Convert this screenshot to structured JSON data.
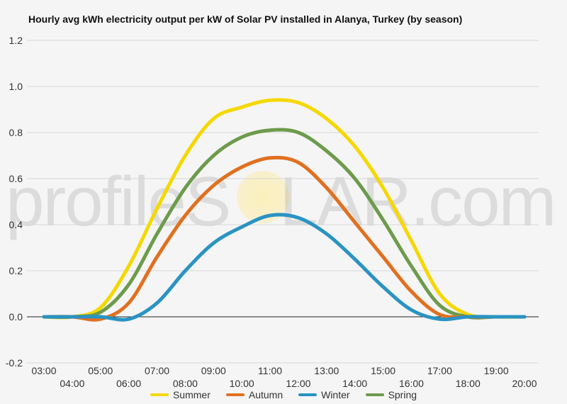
{
  "chart_title": "Hourly avg kWh electricity output per kW of Solar PV installed in Alanya, Turkey (by season)",
  "watermark": {
    "text_before": "profileS",
    "text_after": "LAR.com"
  },
  "chart_data": {
    "type": "line",
    "title": "Hourly avg kWh electricity output per kW of Solar PV installed in Alanya, Turkey (by season)",
    "xlabel": "",
    "ylabel": "",
    "ylim": [
      -0.2,
      1.2
    ],
    "yticks": [
      -0.2,
      0.0,
      0.2,
      0.4,
      0.6,
      0.8,
      1.0,
      1.2
    ],
    "yticklabels": [
      "-0.2",
      "0.0",
      "0.2",
      "0.4",
      "0.6",
      "0.8",
      "1.0",
      "1.2"
    ],
    "categories": [
      "03:00",
      "04:00",
      "05:00",
      "06:00",
      "07:00",
      "08:00",
      "09:00",
      "10:00",
      "11:00",
      "12:00",
      "13:00",
      "14:00",
      "15:00",
      "16:00",
      "17:00",
      "18:00",
      "19:00",
      "20:00"
    ],
    "grid": true,
    "legend_position": "bottom",
    "series": [
      {
        "name": "Summer",
        "color": "#f5d800",
        "values": [
          0.0,
          0.0,
          0.04,
          0.22,
          0.47,
          0.7,
          0.86,
          0.91,
          0.94,
          0.93,
          0.86,
          0.74,
          0.56,
          0.33,
          0.1,
          0.01,
          0.0,
          0.0
        ]
      },
      {
        "name": "Autumn",
        "color": "#e07020",
        "values": [
          0.0,
          0.0,
          -0.01,
          0.06,
          0.26,
          0.44,
          0.57,
          0.65,
          0.69,
          0.67,
          0.56,
          0.41,
          0.26,
          0.11,
          0.01,
          0.0,
          0.0,
          0.0
        ]
      },
      {
        "name": "Winter",
        "color": "#2a93c3",
        "values": [
          0.0,
          0.0,
          0.0,
          -0.01,
          0.06,
          0.2,
          0.32,
          0.39,
          0.44,
          0.43,
          0.36,
          0.25,
          0.13,
          0.03,
          -0.01,
          0.0,
          0.0,
          0.0
        ]
      },
      {
        "name": "Spring",
        "color": "#6d9b4c",
        "values": [
          0.0,
          0.0,
          0.02,
          0.14,
          0.36,
          0.56,
          0.7,
          0.78,
          0.81,
          0.8,
          0.72,
          0.6,
          0.42,
          0.22,
          0.05,
          0.0,
          0.0,
          0.0
        ]
      }
    ]
  }
}
